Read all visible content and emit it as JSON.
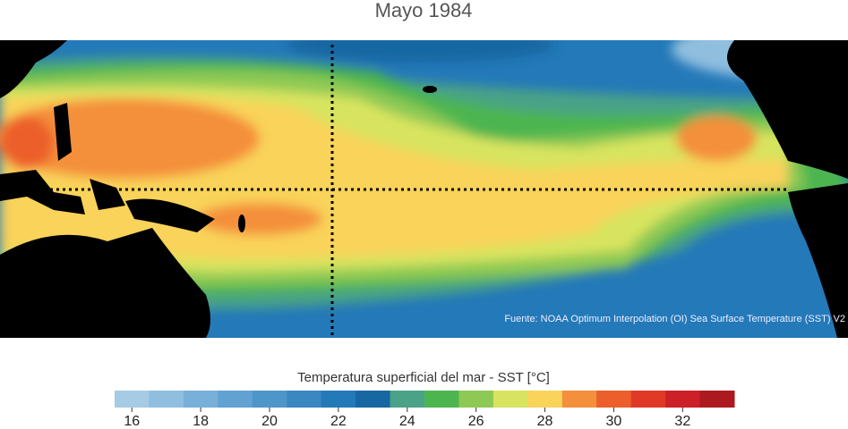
{
  "title": "Mayo 1984",
  "source": "Fuente: NOAA Optimum Interpolation (OI) Sea Surface Temperature (SST) V2",
  "colorbar": {
    "label": "Temperatura superficial del mar - SST  [°C]",
    "bins": [
      15.5,
      16.5,
      17.5,
      18.5,
      19.5,
      20.5,
      21.5,
      22.5,
      23.5,
      24.5,
      25.5,
      26.5,
      27.5,
      28.5,
      29.5,
      30.5,
      31.5,
      32.5,
      33.5
    ],
    "colors": [
      "#a6cbe4",
      "#8fbedf",
      "#78b0d9",
      "#62a2d2",
      "#4e95ca",
      "#3a87c2",
      "#2479b8",
      "#1767a2",
      "#4aa287",
      "#4db550",
      "#8ec955",
      "#d8e45f",
      "#f9d35a",
      "#f48f3b",
      "#ec5e2b",
      "#e03a26",
      "#cc1f27",
      "#ac1a1f"
    ],
    "ticks": [
      16,
      18,
      20,
      22,
      24,
      26,
      28,
      30,
      32
    ]
  }
}
